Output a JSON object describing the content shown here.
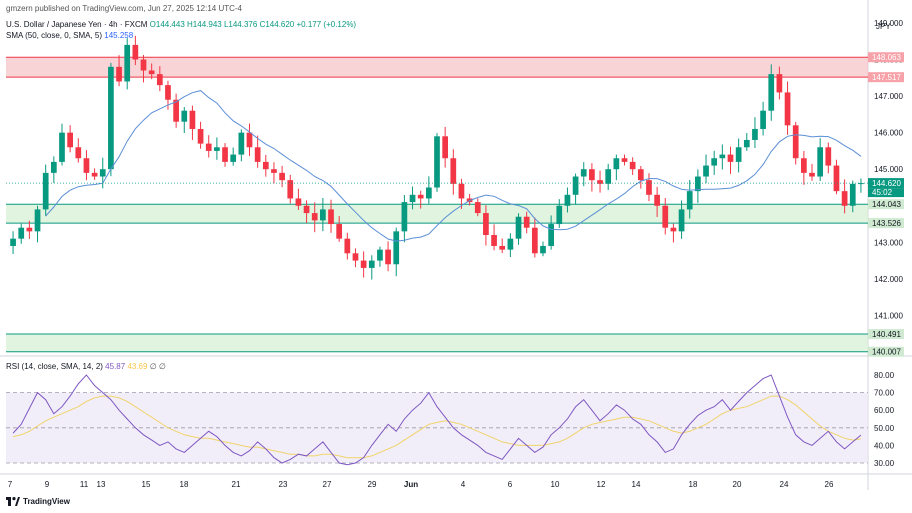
{
  "header": {
    "publisher_line": "gmzern published on TradingView.com, Jun 27, 2025 12:14 UTC-4",
    "symbol": "U.S. Dollar / Japanese Yen · 4h · FXCM",
    "open": "O144.443",
    "high": "H144.943",
    "low": "L144.376",
    "close": "C144.620",
    "change": "+0.177 (+0.12%)",
    "sma_label": "SMA (50, close, 0, SMA, 5)",
    "sma_value": "145.258"
  },
  "currency": "JPY",
  "footer_brand": "TradingView",
  "colors": {
    "up": "#089981",
    "down": "#f23645",
    "sma": "#5b8fd6",
    "rsi": "#7e57c2",
    "rsi_ma": "#f0d36a",
    "resistance_zone": "#f7c5c9",
    "support_zone": "#d7f0d4"
  },
  "chart_data": [
    {
      "type": "candlestick",
      "title": "U.S. Dollar / Japanese Yen · 4h · FXCM",
      "ylim": [
        140.0,
        149.3
      ],
      "y_ticks": [
        "149.000",
        "148.000",
        "147.000",
        "146.000",
        "145.000",
        "144.000",
        "143.000",
        "142.000",
        "141.000"
      ],
      "x_tick_labels": [
        "7",
        "9",
        "11",
        "13",
        "15",
        "18",
        "21",
        "23",
        "27",
        "29",
        "Jun",
        "4",
        "6",
        "10",
        "12",
        "14",
        "18",
        "20",
        "24",
        "26"
      ],
      "price_labels": {
        "resistance_high": "148.063",
        "resistance_low": "147.517",
        "current": "144.620",
        "countdown": "45:02",
        "support_high": "144.043",
        "support_low": "143.526",
        "lower_high": "140.491",
        "lower_low": "140.007"
      },
      "zones": [
        {
          "kind": "resistance",
          "from": 147.517,
          "to": 148.063
        },
        {
          "kind": "support",
          "from": 143.526,
          "to": 144.043
        },
        {
          "kind": "support",
          "from": 140.007,
          "to": 140.491
        }
      ],
      "series": [
        {
          "name": "USD/JPY",
          "closes": [
            143.1,
            143.4,
            143.3,
            143.9,
            144.9,
            145.2,
            146.0,
            145.6,
            145.3,
            144.9,
            144.8,
            145.0,
            147.8,
            147.4,
            148.4,
            148.0,
            147.7,
            147.6,
            147.3,
            146.9,
            146.3,
            146.6,
            146.1,
            145.7,
            145.5,
            145.6,
            145.2,
            145.4,
            146.0,
            145.6,
            145.2,
            145.0,
            144.9,
            144.7,
            144.2,
            144.0,
            143.8,
            143.6,
            143.9,
            143.5,
            143.1,
            142.7,
            142.5,
            142.3,
            142.5,
            142.8,
            142.4,
            143.3,
            144.1,
            144.3,
            144.2,
            144.5,
            145.9,
            145.3,
            144.6,
            144.2,
            144.1,
            143.8,
            143.2,
            142.9,
            142.8,
            143.1,
            143.7,
            143.4,
            142.7,
            142.9,
            143.5,
            144.0,
            144.3,
            144.8,
            145.0,
            144.7,
            144.6,
            145.0,
            145.3,
            145.2,
            145.0,
            144.7,
            144.3,
            144.0,
            143.4,
            143.3,
            143.9,
            144.4,
            144.8,
            145.1,
            145.3,
            145.4,
            145.2,
            145.6,
            145.8,
            146.1,
            146.6,
            147.6,
            147.1,
            146.2,
            145.3,
            144.9,
            144.8,
            145.6,
            145.1,
            144.4,
            144.0,
            144.6,
            144.62
          ]
        }
      ]
    },
    {
      "type": "line",
      "title": "RSI (14, close, SMA, 14, 2)",
      "ylim": [
        26,
        84
      ],
      "y_ticks": [
        "80.00",
        "70.00",
        "60.00",
        "50.00",
        "40.00",
        "30.00"
      ],
      "levels": [
        70,
        50,
        30
      ],
      "rsi_value": "45.87",
      "rsi_ma_value": "43.69",
      "rsi_na_1": "∅",
      "rsi_na_2": "∅",
      "series": [
        {
          "name": "RSI",
          "values": [
            47,
            52,
            61,
            70,
            66,
            58,
            62,
            68,
            75,
            80,
            74,
            70,
            66,
            60,
            55,
            50,
            46,
            43,
            40,
            42,
            38,
            36,
            40,
            44,
            48,
            45,
            40,
            36,
            34,
            37,
            42,
            38,
            33,
            30,
            32,
            35,
            34,
            38,
            42,
            36,
            30,
            29,
            30,
            33,
            40,
            46,
            52,
            48,
            55,
            60,
            64,
            70,
            62,
            56,
            50,
            46,
            43,
            40,
            36,
            34,
            32,
            38,
            44,
            40,
            36,
            39,
            46,
            50,
            55,
            62,
            66,
            60,
            54,
            58,
            63,
            60,
            55,
            52,
            46,
            42,
            36,
            38,
            46,
            52,
            57,
            60,
            62,
            66,
            60,
            65,
            70,
            74,
            78,
            80,
            68,
            56,
            46,
            42,
            40,
            44,
            48,
            42,
            38,
            42,
            45.87
          ]
        },
        {
          "name": "RSI-based MA",
          "values": [
            45,
            46,
            48,
            51,
            54,
            56,
            58,
            60,
            62,
            65,
            67,
            68,
            68,
            67,
            65,
            62,
            59,
            56,
            53,
            50,
            48,
            46,
            45,
            44,
            44,
            43,
            42,
            41,
            40,
            39,
            39,
            38,
            37,
            36,
            35,
            35,
            34,
            34,
            35,
            35,
            34,
            33,
            33,
            33,
            34,
            36,
            38,
            40,
            43,
            46,
            49,
            52,
            53,
            54,
            53,
            52,
            50,
            48,
            46,
            44,
            42,
            41,
            40,
            40,
            40,
            40,
            41,
            42,
            44,
            47,
            50,
            52,
            53,
            54,
            55,
            56,
            56,
            55,
            54,
            52,
            50,
            48,
            47,
            48,
            50,
            52,
            55,
            58,
            60,
            61,
            62,
            64,
            66,
            68,
            68,
            66,
            63,
            59,
            55,
            51,
            48,
            46,
            44,
            43,
            43.69
          ]
        }
      ]
    }
  ]
}
